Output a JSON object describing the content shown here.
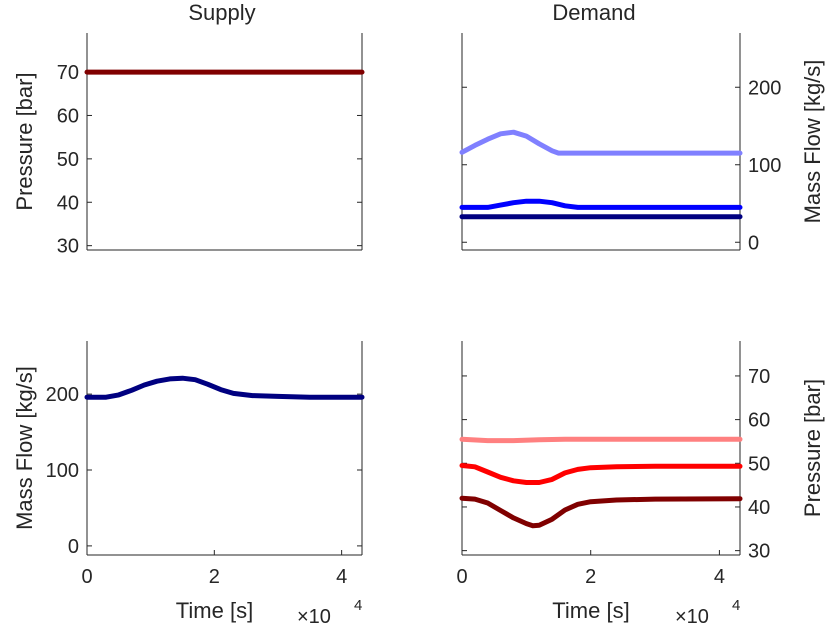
{
  "figure": {
    "titles": {
      "supply": "Supply",
      "demand": "Demand"
    }
  },
  "chart_data": [
    {
      "id": "supply_pressure",
      "type": "line",
      "title": "Supply",
      "xlabel": "",
      "ylabel": "Pressure [bar]",
      "xlim": [
        0,
        43200
      ],
      "ylim": [
        29,
        79
      ],
      "yticks": [
        30,
        40,
        50,
        60,
        70
      ],
      "ytick_labels": [
        "30",
        "40",
        "50",
        "60",
        "70"
      ],
      "y_axis_side": "left",
      "xticks_visible": false,
      "series": [
        {
          "name": "supply-pressure",
          "color": "#800000",
          "x": [
            0,
            43200
          ],
          "y": [
            70,
            70
          ]
        }
      ]
    },
    {
      "id": "demand_massflow",
      "type": "line",
      "title": "Demand",
      "xlabel": "",
      "ylabel": "Mass Flow [kg/s]",
      "xlim": [
        0,
        43200
      ],
      "ylim": [
        -10,
        270
      ],
      "yticks": [
        0,
        100,
        200
      ],
      "ytick_labels": [
        "0",
        "100",
        "200"
      ],
      "y_axis_side": "right",
      "xticks_visible": false,
      "series": [
        {
          "name": "demand-flow-light",
          "color": "#8080ff",
          "x": [
            0,
            2000,
            4000,
            6000,
            8000,
            10000,
            12000,
            14000,
            15000,
            20000,
            30000,
            43200
          ],
          "y": [
            116,
            125,
            133,
            140,
            142,
            137,
            127,
            118,
            115,
            115,
            115,
            115
          ]
        },
        {
          "name": "demand-flow-mid",
          "color": "#0000ff",
          "x": [
            0,
            4000,
            6000,
            8000,
            10000,
            12000,
            14000,
            16000,
            18000,
            20000,
            30000,
            43200
          ],
          "y": [
            45,
            45,
            48,
            51,
            53,
            53,
            51,
            47,
            45,
            45,
            45,
            45
          ]
        },
        {
          "name": "demand-flow-dark",
          "color": "#000080",
          "x": [
            0,
            43200
          ],
          "y": [
            33,
            33
          ]
        }
      ]
    },
    {
      "id": "supply_massflow",
      "type": "line",
      "title": "",
      "xlabel": "Time [s]",
      "ylabel": "Mass Flow [kg/s]",
      "xlim": [
        0,
        43200
      ],
      "ylim": [
        -12,
        270
      ],
      "yticks": [
        0,
        100,
        200
      ],
      "ytick_labels": [
        "0",
        "100",
        "200"
      ],
      "xticks": [
        0,
        20000,
        40000
      ],
      "xtick_labels": [
        "0",
        "2",
        "4"
      ],
      "x_exponent": "×10",
      "x_exponent_power": "4",
      "y_axis_side": "left",
      "xticks_visible": true,
      "series": [
        {
          "name": "supply-flow",
          "color": "#000080",
          "x": [
            0,
            3000,
            5000,
            7000,
            9000,
            11000,
            13000,
            15000,
            17000,
            19000,
            21000,
            23000,
            26000,
            30000,
            35000,
            40000,
            43200
          ],
          "y": [
            196,
            196,
            199,
            205,
            212,
            217,
            220,
            221,
            219,
            213,
            206,
            201,
            198,
            197,
            196,
            196,
            196
          ]
        }
      ]
    },
    {
      "id": "demand_pressure",
      "type": "line",
      "title": "",
      "xlabel": "Time [s]",
      "ylabel": "Pressure [bar]",
      "xlim": [
        0,
        43200
      ],
      "ylim": [
        29,
        78
      ],
      "yticks": [
        30,
        40,
        50,
        60,
        70
      ],
      "ytick_labels": [
        "30",
        "40",
        "50",
        "60",
        "70"
      ],
      "xticks": [
        0,
        20000,
        40000
      ],
      "xtick_labels": [
        "0",
        "2",
        "4"
      ],
      "x_exponent": "×10",
      "x_exponent_power": "4",
      "y_axis_side": "right",
      "xticks_visible": true,
      "series": [
        {
          "name": "demand-pressure-light",
          "color": "#ff8080",
          "x": [
            0,
            4000,
            8000,
            12000,
            16000,
            20000,
            30000,
            43200
          ],
          "y": [
            55.5,
            55.2,
            55.2,
            55.4,
            55.5,
            55.5,
            55.5,
            55.5
          ]
        },
        {
          "name": "demand-pressure-mid",
          "color": "#ff0000",
          "x": [
            0,
            2000,
            4000,
            6000,
            8000,
            10000,
            12000,
            14000,
            16000,
            18000,
            20000,
            24000,
            30000,
            43200
          ],
          "y": [
            49.5,
            49.2,
            48.0,
            46.8,
            46.0,
            45.6,
            45.6,
            46.3,
            47.8,
            48.6,
            49.0,
            49.2,
            49.3,
            49.3
          ]
        },
        {
          "name": "demand-pressure-dark",
          "color": "#800000",
          "x": [
            0,
            2000,
            4000,
            6000,
            8000,
            10000,
            11000,
            12000,
            14000,
            16000,
            18000,
            20000,
            24000,
            30000,
            43200
          ],
          "y": [
            42.0,
            41.8,
            40.9,
            39.2,
            37.5,
            36.2,
            35.7,
            35.8,
            37.2,
            39.3,
            40.6,
            41.2,
            41.6,
            41.8,
            41.9
          ]
        }
      ]
    }
  ]
}
